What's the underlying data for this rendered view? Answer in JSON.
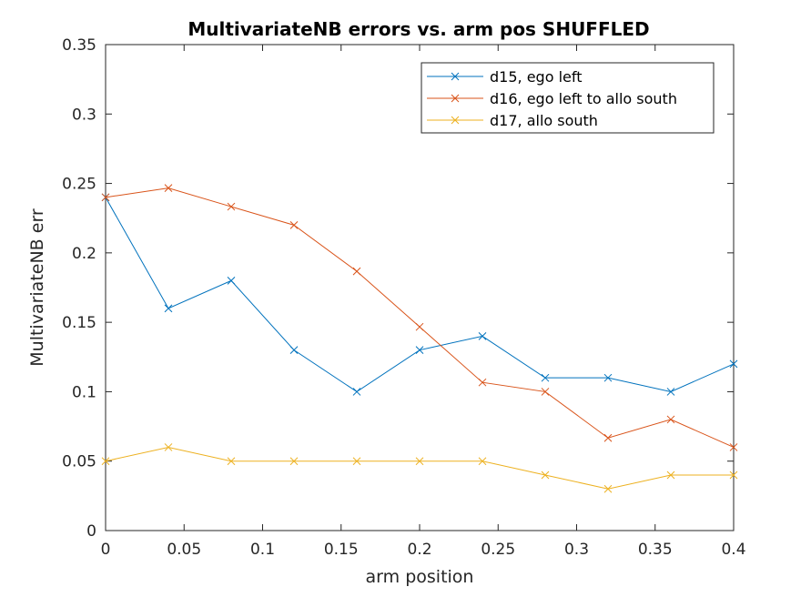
{
  "chart_data": {
    "type": "line",
    "title": "MultivariateNB errors vs. arm pos SHUFFLED",
    "xlabel": "arm position",
    "ylabel": "MultivariateNB err",
    "xlim": [
      0,
      0.4
    ],
    "ylim": [
      0,
      0.35
    ],
    "xticks": [
      0,
      0.05,
      0.1,
      0.15,
      0.2,
      0.25,
      0.3,
      0.35,
      0.4
    ],
    "xtick_labels": [
      "0",
      "0.05",
      "0.1",
      "0.15",
      "0.2",
      "0.25",
      "0.3",
      "0.35",
      "0.4"
    ],
    "yticks": [
      0,
      0.05,
      0.1,
      0.15,
      0.2,
      0.25,
      0.3,
      0.35
    ],
    "ytick_labels": [
      "0",
      "0.05",
      "0.1",
      "0.15",
      "0.2",
      "0.25",
      "0.3",
      "0.35"
    ],
    "grid": false,
    "legend_position": "top-right",
    "marker": "x",
    "x": [
      0,
      0.04,
      0.08,
      0.12,
      0.16,
      0.2,
      0.24,
      0.28,
      0.32,
      0.36,
      0.4
    ],
    "series": [
      {
        "name": "d15, ego left",
        "color": "#0072BD",
        "values": [
          0.24,
          0.16,
          0.18,
          0.13,
          0.1,
          0.13,
          0.14,
          0.11,
          0.11,
          0.1,
          0.12
        ]
      },
      {
        "name": "d16, ego left to allo south",
        "color": "#D95319",
        "values": [
          0.24,
          0.2467,
          0.2333,
          0.22,
          0.1867,
          0.1467,
          0.1067,
          0.1,
          0.0667,
          0.08,
          0.06
        ]
      },
      {
        "name": "d17, allo south",
        "color": "#EDB120",
        "values": [
          0.05,
          0.06,
          0.05,
          0.05,
          0.05,
          0.05,
          0.05,
          0.04,
          0.03,
          0.04,
          0.04
        ]
      }
    ]
  }
}
